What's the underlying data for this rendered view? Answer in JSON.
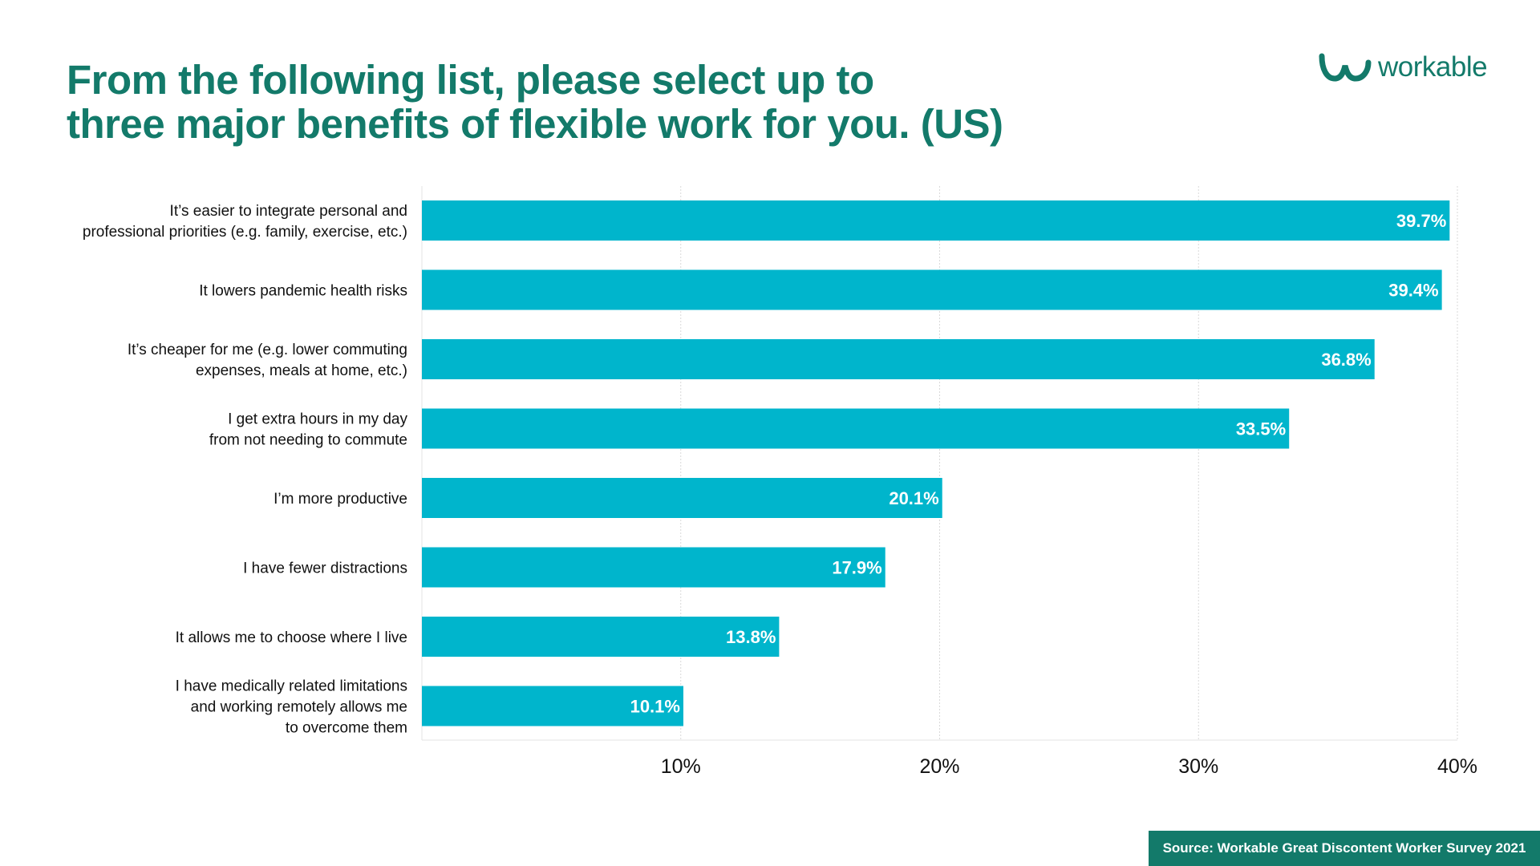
{
  "title_lines": [
    "From the following list, please select up to",
    "three major benefits of flexible work for you. (US)"
  ],
  "logo": {
    "text": "workable",
    "icon": "workable-logo-icon"
  },
  "source": "Source: Workable Great Discontent Worker Survey 2021",
  "colors": {
    "title": "#137a6a",
    "bar": "#00b5cc",
    "source_bg": "#137a6a"
  },
  "chart_data": {
    "type": "bar",
    "orientation": "horizontal",
    "categories": [
      [
        "It’s easier to integrate personal and",
        "professional priorities (e.g. family, exercise, etc.)"
      ],
      [
        "It lowers pandemic health risks"
      ],
      [
        "It’s cheaper for me (e.g. lower commuting",
        "expenses, meals at home, etc.)"
      ],
      [
        "I get extra hours in my day",
        "from not needing to commute"
      ],
      [
        "I’m more productive"
      ],
      [
        "I have fewer distractions"
      ],
      [
        "It allows me to choose where I live"
      ],
      [
        "I have medically related limitations",
        "and working remotely allows me",
        "to overcome them"
      ]
    ],
    "values": [
      39.7,
      39.4,
      36.8,
      33.5,
      20.1,
      17.9,
      13.8,
      10.1
    ],
    "data_labels": [
      "39.7%",
      "39.4%",
      "36.8%",
      "33.5%",
      "20.1%",
      "17.9%",
      "13.8%",
      "10.1%"
    ],
    "xlim": [
      0,
      40
    ],
    "x_ticks": [
      10,
      20,
      30,
      40
    ],
    "x_tick_labels": [
      "10%",
      "20%",
      "30%",
      "40%"
    ],
    "grid": true,
    "legend": false
  }
}
